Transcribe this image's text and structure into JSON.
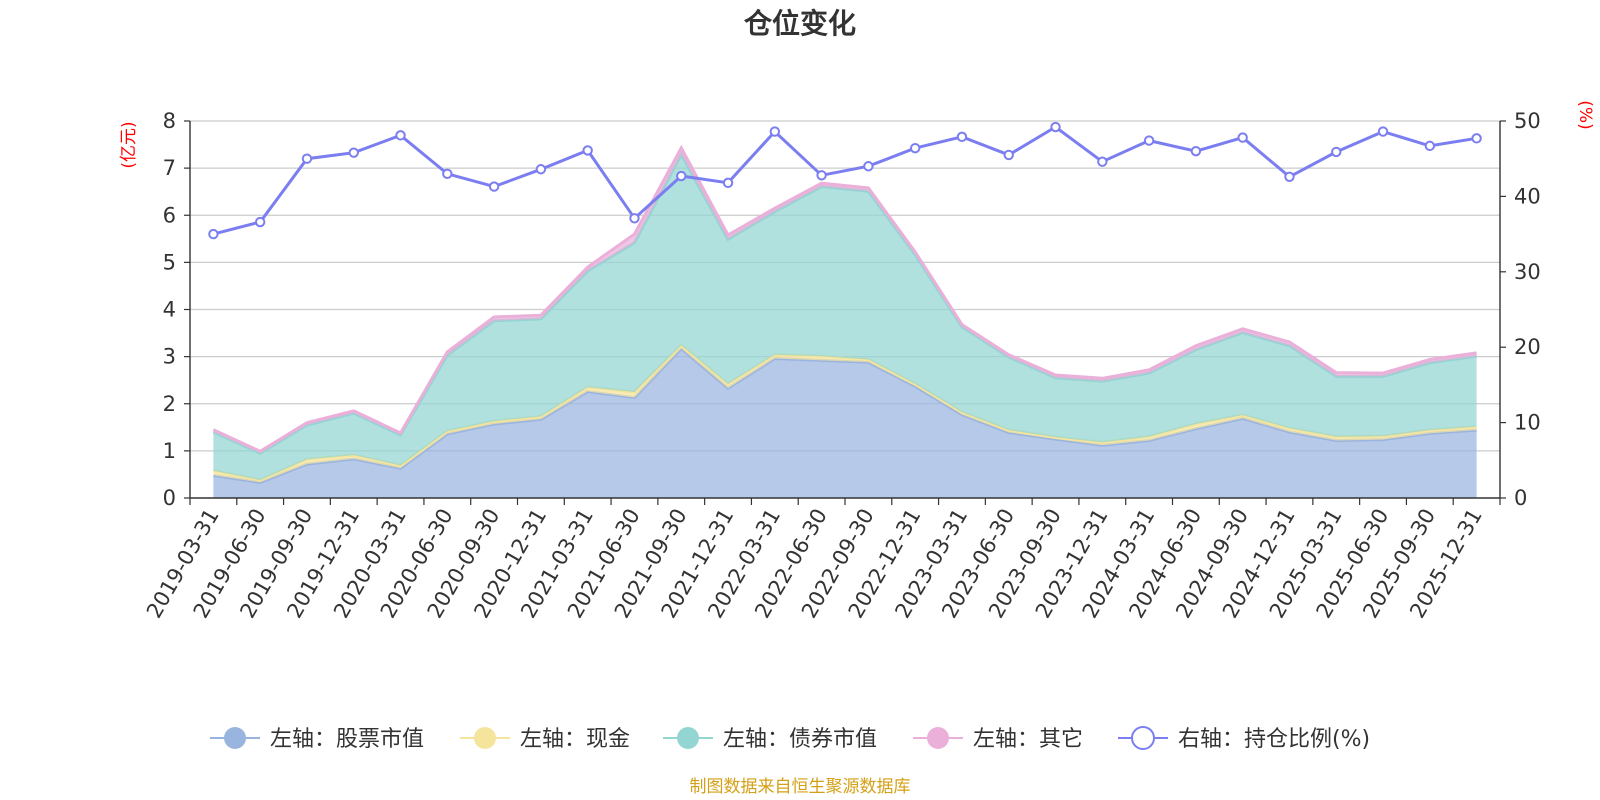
{
  "chart_data": {
    "type": "area",
    "title": "仓位变化",
    "left_unit": "(亿元)",
    "right_unit": "(%)",
    "source": "制图数据来自恒生聚源数据库",
    "x": [
      "2019-03-31",
      "2019-06-30",
      "2019-09-30",
      "2019-12-31",
      "2020-03-31",
      "2020-06-30",
      "2020-09-30",
      "2020-12-31",
      "2021-03-31",
      "2021-06-30",
      "2021-09-30",
      "2021-12-31",
      "2022-03-31",
      "2022-06-30",
      "2022-09-30",
      "2022-12-31",
      "2023-03-31",
      "2023-06-30",
      "2023-09-30",
      "2023-12-31",
      "2024-03-31",
      "2024-06-30",
      "2024-09-30",
      "2024-12-31",
      "2025-03-31",
      "2025-06-30",
      "2025-09-30",
      "2025-12-31"
    ],
    "left_axis": {
      "min": 0,
      "max": 8,
      "ticks": [
        "0",
        "1",
        "2",
        "3",
        "4",
        "5",
        "6",
        "7",
        "8"
      ]
    },
    "right_axis": {
      "min": 0,
      "max": 50,
      "ticks": [
        "0",
        "10",
        "20",
        "30",
        "40",
        "50"
      ]
    },
    "series": [
      {
        "name": "左轴：股票市值",
        "axis": "left",
        "kind": "stacked-area",
        "color": "#9ab4e0",
        "values": [
          0.48,
          0.33,
          0.72,
          0.83,
          0.63,
          1.36,
          1.57,
          1.67,
          2.26,
          2.13,
          3.17,
          2.33,
          2.96,
          2.92,
          2.88,
          2.37,
          1.77,
          1.39,
          1.25,
          1.12,
          1.22,
          1.47,
          1.69,
          1.4,
          1.22,
          1.24,
          1.37,
          1.44
        ]
      },
      {
        "name": "左轴：现金",
        "axis": "left",
        "kind": "stacked-area",
        "color": "#f5e49c",
        "values": [
          0.1,
          0.05,
          0.1,
          0.08,
          0.06,
          0.06,
          0.06,
          0.06,
          0.09,
          0.12,
          0.07,
          0.09,
          0.08,
          0.09,
          0.06,
          0.05,
          0.05,
          0.05,
          0.04,
          0.06,
          0.08,
          0.1,
          0.07,
          0.08,
          0.08,
          0.07,
          0.07,
          0.07
        ]
      },
      {
        "name": "左轴：债券市值",
        "axis": "left",
        "kind": "stacked-area",
        "color": "#92d5d3",
        "values": [
          0.82,
          0.57,
          0.73,
          0.89,
          0.65,
          1.61,
          2.13,
          2.07,
          2.47,
          3.17,
          4.05,
          3.07,
          3.04,
          3.6,
          3.57,
          2.74,
          1.81,
          1.55,
          1.26,
          1.3,
          1.35,
          1.58,
          1.75,
          1.75,
          1.28,
          1.27,
          1.43,
          1.5
        ]
      },
      {
        "name": "左轴：其它",
        "axis": "left",
        "kind": "stacked-area",
        "color": "#eab0d9",
        "values": [
          0.05,
          0.04,
          0.05,
          0.05,
          0.04,
          0.07,
          0.08,
          0.08,
          0.08,
          0.18,
          0.14,
          0.09,
          0.07,
          0.07,
          0.07,
          0.06,
          0.05,
          0.05,
          0.06,
          0.06,
          0.07,
          0.08,
          0.08,
          0.08,
          0.08,
          0.07,
          0.07,
          0.07
        ]
      },
      {
        "name": "右轴：持仓比例(%)",
        "axis": "right",
        "kind": "line",
        "color": "#7b7ef0",
        "values": [
          35.0,
          36.6,
          45.0,
          45.8,
          48.1,
          43.0,
          41.3,
          43.6,
          46.1,
          37.1,
          42.7,
          41.8,
          48.6,
          42.8,
          44.0,
          46.4,
          47.9,
          45.5,
          49.2,
          44.6,
          47.4,
          46.0,
          47.8,
          42.6,
          45.9,
          48.6,
          46.7,
          47.7
        ]
      }
    ]
  }
}
